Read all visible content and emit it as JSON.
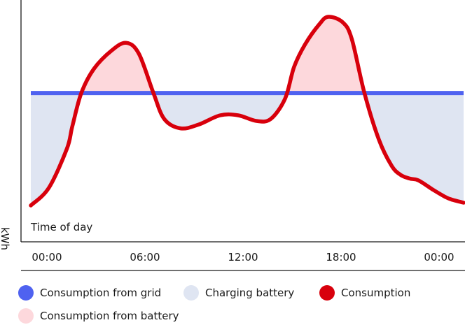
{
  "chart_data": {
    "type": "line",
    "xlabel": "Time of day",
    "ylabel": "kWh",
    "x_ticks": [
      "00:00",
      "06:00",
      "12:00",
      "18:00",
      "00:00"
    ],
    "xlim": [
      0,
      24
    ],
    "ylim": [
      0,
      10
    ],
    "grid_consumption_level": 6.2,
    "series": [
      {
        "name": "Consumption",
        "color": "#d8000c",
        "x": [
          0,
          1,
          2,
          2.3,
          2.8,
          3.5,
          4.5,
          5.3,
          6.0,
          6.8,
          7.4,
          8.3,
          9.3,
          10.5,
          11.5,
          12.5,
          13.3,
          14.1,
          14.6,
          15.2,
          16.0,
          16.5,
          17.3,
          17.8,
          18.5,
          19.3,
          20.0,
          20.5,
          21.0,
          21.5,
          22.3,
          23.0,
          23.4,
          23.8,
          24.0
        ],
        "y": [
          0.15,
          1.1,
          3.2,
          4.4,
          6.2,
          7.5,
          8.5,
          8.9,
          8.3,
          6.2,
          4.8,
          4.3,
          4.5,
          5.0,
          5.0,
          4.7,
          4.8,
          5.9,
          7.6,
          8.8,
          9.9,
          10.3,
          10.0,
          9.1,
          6.2,
          3.7,
          2.3,
          1.8,
          1.6,
          1.5,
          1.0,
          0.6,
          0.45,
          0.35,
          0.3
        ]
      }
    ],
    "legend": [
      {
        "label": "Consumption from grid",
        "color": "#4f62f0"
      },
      {
        "label": "Charging battery",
        "color": "#dfe5f2"
      },
      {
        "label": "Consumption",
        "color": "#d8000c"
      },
      {
        "label": "Consumption from battery",
        "color": "#fdd8dc"
      }
    ],
    "fill_colors": {
      "charging": "#dfe5f2",
      "battery": "#fdd8dc",
      "grid_line": "#4f62f0"
    },
    "grid": false,
    "legend_position": "bottom"
  }
}
